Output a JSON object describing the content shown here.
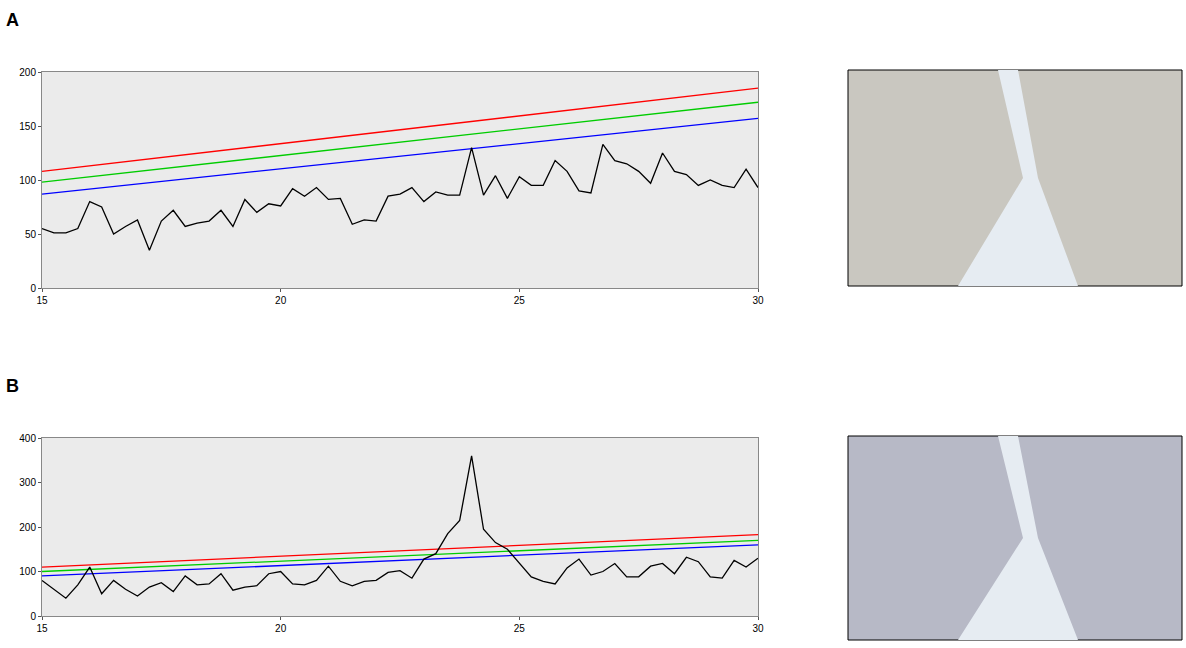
{
  "chart_data": [
    {
      "type": "line",
      "panel": "A",
      "grid": false,
      "legend": "none",
      "xlim": [
        15,
        30
      ],
      "xticks": [
        15,
        20,
        25,
        30
      ],
      "ylim": [
        0,
        200
      ],
      "yticks": [
        0,
        50,
        100,
        150,
        200
      ],
      "series": [
        {
          "color": "#ff0000",
          "x": [
            15,
            30
          ],
          "values": [
            108,
            185
          ]
        },
        {
          "color": "#00cc00",
          "x": [
            15,
            30
          ],
          "values": [
            98,
            172
          ]
        },
        {
          "color": "#0000ff",
          "x": [
            15,
            30
          ],
          "values": [
            87,
            157
          ]
        },
        {
          "color": "#000000",
          "x": [
            15,
            15.25,
            15.5,
            15.75,
            16,
            16.25,
            16.5,
            16.75,
            17,
            17.25,
            17.5,
            17.75,
            18,
            18.25,
            18.5,
            18.75,
            19,
            19.25,
            19.5,
            19.75,
            20,
            20.25,
            20.5,
            20.75,
            21,
            21.25,
            21.5,
            21.75,
            22,
            22.25,
            22.5,
            22.75,
            23,
            23.25,
            23.5,
            23.75,
            24,
            24.25,
            24.5,
            24.75,
            25,
            25.25,
            25.5,
            25.75,
            26,
            26.25,
            26.5,
            26.75,
            27,
            27.25,
            27.5,
            27.75,
            28,
            28.25,
            28.5,
            28.75,
            29,
            29.25,
            29.5,
            29.75,
            30
          ],
          "values": [
            55,
            51,
            51,
            55,
            80,
            75,
            50,
            57,
            63,
            35,
            62,
            72,
            57,
            60,
            62,
            72,
            57,
            82,
            70,
            78,
            76,
            92,
            85,
            93,
            82,
            83,
            59,
            63,
            62,
            85,
            87,
            93,
            80,
            89,
            86,
            86,
            130,
            86,
            104,
            83,
            103,
            95,
            95,
            118,
            108,
            90,
            88,
            133,
            118,
            115,
            108,
            97,
            125,
            108,
            105,
            95,
            100,
            95,
            93,
            110,
            93
          ]
        }
      ]
    },
    {
      "type": "line",
      "panel": "B",
      "grid": false,
      "legend": "none",
      "xlim": [
        15,
        30
      ],
      "xticks": [
        15,
        20,
        25,
        30
      ],
      "ylim": [
        0,
        400
      ],
      "yticks": [
        0,
        100,
        200,
        300,
        400
      ],
      "series": [
        {
          "color": "#ff0000",
          "x": [
            15,
            30
          ],
          "values": [
            110,
            183
          ]
        },
        {
          "color": "#00cc00",
          "x": [
            15,
            30
          ],
          "values": [
            100,
            170
          ]
        },
        {
          "color": "#0000ff",
          "x": [
            15,
            30
          ],
          "values": [
            90,
            160
          ]
        },
        {
          "color": "#000000",
          "x": [
            15,
            15.25,
            15.5,
            15.75,
            16,
            16.25,
            16.5,
            16.75,
            17,
            17.25,
            17.5,
            17.75,
            18,
            18.25,
            18.5,
            18.75,
            19,
            19.25,
            19.5,
            19.75,
            20,
            20.25,
            20.5,
            20.75,
            21,
            21.25,
            21.5,
            21.75,
            22,
            22.25,
            22.5,
            22.75,
            23,
            23.25,
            23.5,
            23.75,
            24,
            24.25,
            24.5,
            24.75,
            25,
            25.25,
            25.5,
            25.75,
            26,
            26.25,
            26.5,
            26.75,
            27,
            27.25,
            27.5,
            27.75,
            28,
            28.25,
            28.5,
            28.75,
            29,
            29.25,
            29.5,
            29.75,
            30
          ],
          "values": [
            80,
            60,
            40,
            70,
            110,
            50,
            80,
            60,
            45,
            65,
            75,
            55,
            90,
            70,
            72,
            95,
            58,
            65,
            68,
            95,
            100,
            72,
            70,
            80,
            112,
            78,
            68,
            78,
            80,
            98,
            102,
            85,
            128,
            140,
            185,
            215,
            360,
            195,
            165,
            150,
            118,
            88,
            78,
            72,
            108,
            128,
            92,
            100,
            118,
            88,
            88,
            112,
            118,
            95,
            132,
            122,
            88,
            85,
            125,
            110,
            130
          ]
        }
      ]
    }
  ]
}
